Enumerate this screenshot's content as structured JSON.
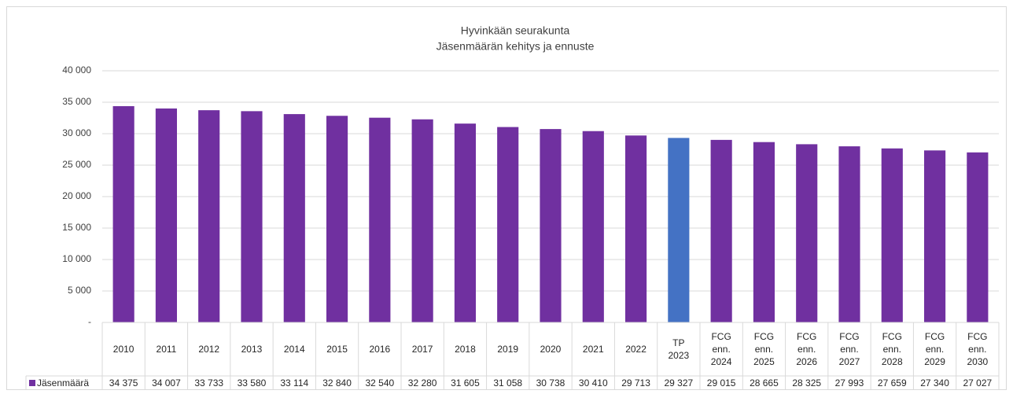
{
  "chart_data": {
    "type": "bar",
    "title": "Hyvinkään seurakunta",
    "subtitle": "Jäsenmäärän kehitys ja ennuste",
    "categories": [
      "2010",
      "2011",
      "2012",
      "2013",
      "2014",
      "2015",
      "2016",
      "2017",
      "2018",
      "2019",
      "2020",
      "2021",
      "2022",
      "TP 2023",
      "FCG enn. 2024",
      "FCG enn. 2025",
      "FCG enn. 2026",
      "FCG enn. 2027",
      "FCG enn. 2028",
      "FCG enn. 2029",
      "FCG enn. 2030"
    ],
    "series": [
      {
        "name": "Jäsenmäärä",
        "color": "#7030a0",
        "values": [
          34375,
          34007,
          33733,
          33580,
          33114,
          32840,
          32540,
          32280,
          31605,
          31058,
          30738,
          30410,
          29713,
          29327,
          29015,
          28665,
          28325,
          27993,
          27659,
          27340,
          27027
        ],
        "value_labels": [
          "34 375",
          "34 007",
          "33 733",
          "33 580",
          "33 114",
          "32 840",
          "32 540",
          "32 280",
          "31 605",
          "31 058",
          "30 738",
          "30 410",
          "29 713",
          "29 327",
          "29 015",
          "28 665",
          "28 325",
          "27 993",
          "27 659",
          "27 340",
          "27 027"
        ]
      }
    ],
    "point_colors": [
      "#7030a0",
      "#7030a0",
      "#7030a0",
      "#7030a0",
      "#7030a0",
      "#7030a0",
      "#7030a0",
      "#7030a0",
      "#7030a0",
      "#7030a0",
      "#7030a0",
      "#7030a0",
      "#7030a0",
      "#4472c4",
      "#7030a0",
      "#7030a0",
      "#7030a0",
      "#7030a0",
      "#7030a0",
      "#7030a0",
      "#7030a0"
    ],
    "ylim": [
      0,
      40000
    ],
    "yticks": [
      {
        "value": 0,
        "label": "-"
      },
      {
        "value": 5000,
        "label": "5 000"
      },
      {
        "value": 10000,
        "label": "10 000"
      },
      {
        "value": 15000,
        "label": "15 000"
      },
      {
        "value": 20000,
        "label": "20 000"
      },
      {
        "value": 25000,
        "label": "25 000"
      },
      {
        "value": 30000,
        "label": "30 000"
      },
      {
        "value": 35000,
        "label": "35 000"
      },
      {
        "value": 40000,
        "label": "40 000"
      }
    ],
    "grid": true,
    "data_table": true
  }
}
